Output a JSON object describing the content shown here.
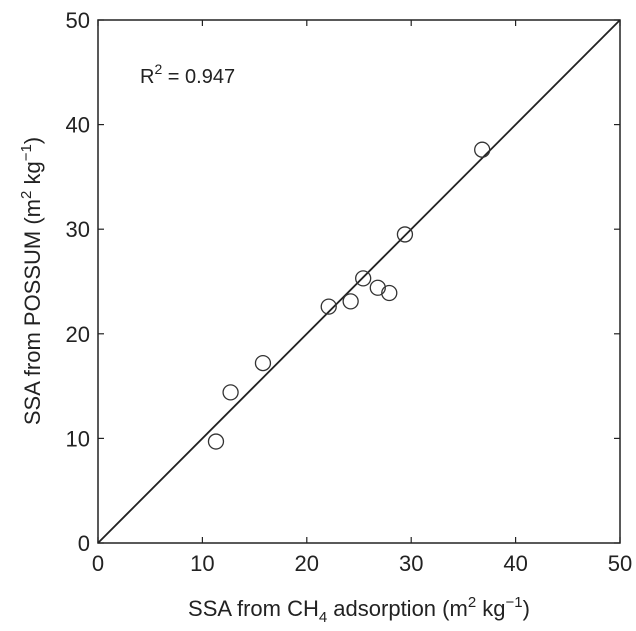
{
  "chart_data": {
    "type": "scatter",
    "title": "",
    "xlabel": {
      "prefix": "SSA from CH",
      "sub": "4",
      "mid": " adsorption (m",
      "sup1": "2",
      "mid2": " kg",
      "sup2": "−1",
      "suffix": ")"
    },
    "ylabel": {
      "prefix": "SSA from POSSUM  (m",
      "sup1": "2",
      "mid": " kg",
      "sup2": "−1",
      "suffix": ")"
    },
    "xlim": [
      0,
      50
    ],
    "ylim": [
      0,
      50
    ],
    "xticks": [
      0,
      10,
      20,
      30,
      40,
      50
    ],
    "yticks": [
      0,
      10,
      20,
      30,
      40,
      50
    ],
    "grid": false,
    "annotation": {
      "prefix": "R",
      "sup": "2",
      "suffix": " = 0.947"
    },
    "reference_line": {
      "type": "1:1",
      "from": [
        0,
        0
      ],
      "to": [
        50,
        50
      ]
    },
    "points": [
      {
        "x": 11.3,
        "y": 9.7
      },
      {
        "x": 12.7,
        "y": 14.4
      },
      {
        "x": 15.8,
        "y": 17.2
      },
      {
        "x": 22.1,
        "y": 22.6
      },
      {
        "x": 24.2,
        "y": 23.1
      },
      {
        "x": 25.4,
        "y": 25.3
      },
      {
        "x": 26.8,
        "y": 24.4
      },
      {
        "x": 27.9,
        "y": 23.9
      },
      {
        "x": 29.4,
        "y": 29.5
      },
      {
        "x": 36.8,
        "y": 37.6
      }
    ],
    "marker": "open-circle",
    "marker_color": "#333333"
  }
}
